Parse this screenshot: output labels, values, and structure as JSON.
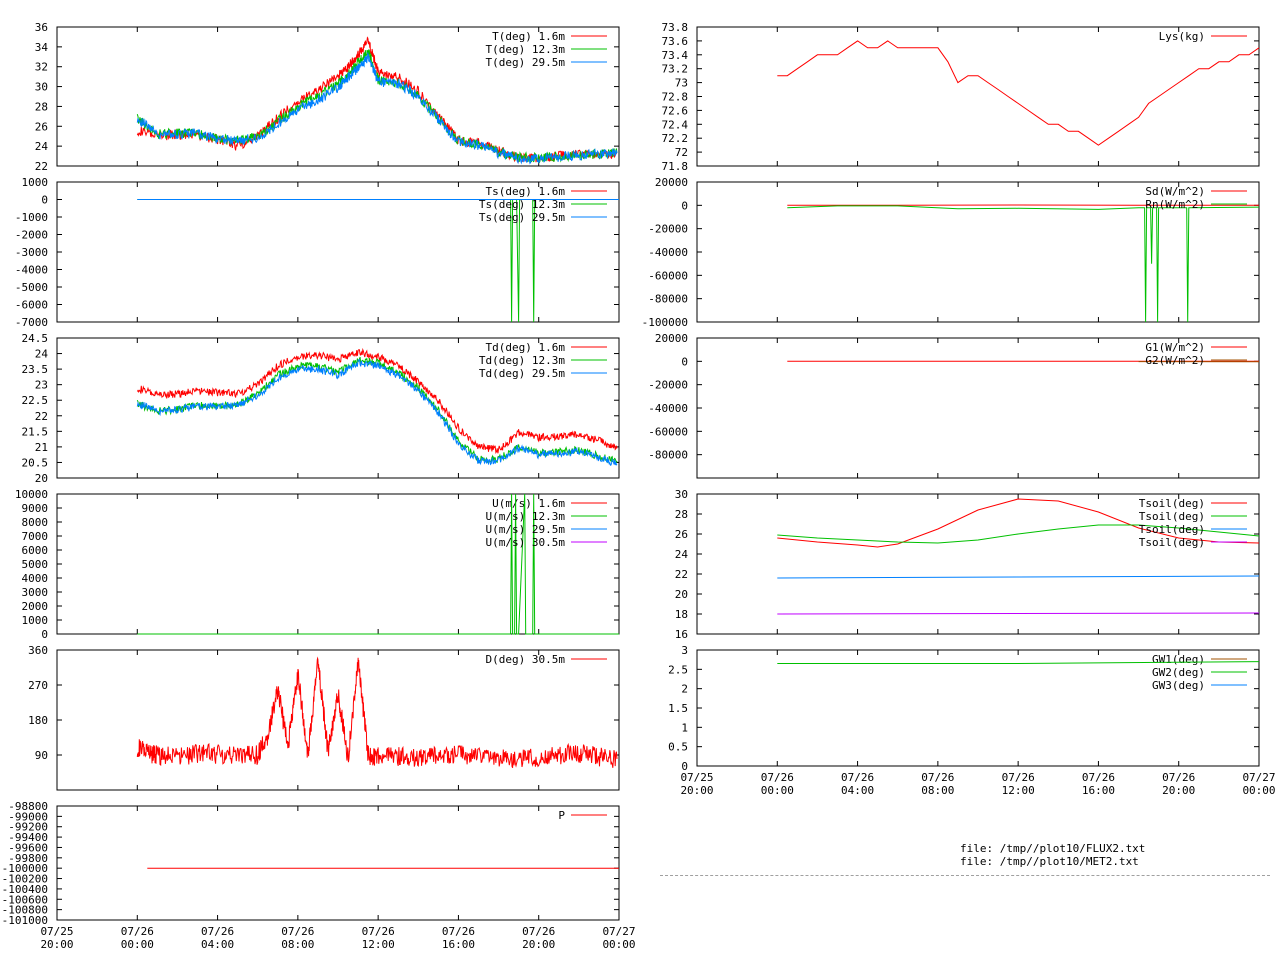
{
  "colors": {
    "red": "#ff0000",
    "green": "#00c000",
    "blue": "#0080ff",
    "purple": "#c000ff",
    "brown": "#a05000",
    "black": "#000000"
  },
  "files": {
    "line1": "file: /tmp//plot10/FLUX2.txt",
    "line2": "file: /tmp//plot10/MET2.txt"
  },
  "chart_data": [
    {
      "id": "temperature",
      "type": "line",
      "x_range_hours": [
        -4,
        24
      ],
      "ylim": [
        22,
        36
      ],
      "yticks": [
        "22",
        "24",
        "26",
        "28",
        "30",
        "32",
        "34",
        "36"
      ],
      "series": [
        {
          "name": "T(deg)  1.6m",
          "color": "#ff0000",
          "x": [
            0,
            1,
            2,
            3,
            4,
            5,
            6,
            7,
            8,
            9,
            10,
            10.5,
            11,
            11.5,
            12,
            13,
            14,
            15,
            16,
            17,
            18,
            19,
            20,
            21,
            22,
            23,
            23.9
          ],
          "y": [
            25.6,
            25.0,
            25.2,
            25.1,
            24.7,
            24.0,
            25.0,
            26.8,
            28.5,
            29.6,
            31.0,
            32.0,
            33.2,
            34.6,
            31.5,
            31.0,
            29.5,
            27.0,
            24.6,
            24.3,
            23.5,
            22.9,
            22.8,
            23.0,
            23.2,
            23.2,
            23.3
          ]
        },
        {
          "name": "T(deg) 12.3m",
          "color": "#00c000",
          "x": [
            0,
            1,
            2,
            3,
            4,
            5,
            6,
            7,
            8,
            9,
            10,
            10.5,
            11,
            11.5,
            12,
            13,
            14,
            15,
            16,
            17,
            18,
            19,
            20,
            21,
            22,
            23,
            23.9
          ],
          "y": [
            26.8,
            25.2,
            25.3,
            25.3,
            24.7,
            24.6,
            24.9,
            26.5,
            28.0,
            29.0,
            30.3,
            31.2,
            32.4,
            33.6,
            30.7,
            30.4,
            29.1,
            26.8,
            24.5,
            24.2,
            23.4,
            22.9,
            22.8,
            23.0,
            23.1,
            23.2,
            23.3
          ]
        },
        {
          "name": "T(deg) 29.5m",
          "color": "#0080ff",
          "x": [
            0,
            1,
            2,
            3,
            4,
            5,
            6,
            7,
            8,
            9,
            10,
            10.5,
            11,
            11.5,
            12,
            13,
            14,
            15,
            16,
            17,
            18,
            19,
            20,
            21,
            22,
            23,
            23.9
          ],
          "y": [
            26.8,
            25.2,
            25.2,
            25.3,
            24.7,
            24.6,
            24.8,
            26.2,
            27.7,
            28.6,
            29.9,
            30.9,
            31.8,
            33.0,
            30.5,
            30.3,
            29.0,
            26.7,
            24.4,
            24.1,
            23.3,
            22.8,
            22.7,
            22.9,
            23.1,
            23.2,
            23.3
          ]
        }
      ]
    },
    {
      "id": "sonic-temperature",
      "type": "line",
      "x_range_hours": [
        -4,
        24
      ],
      "ylim": [
        -7000,
        1000
      ],
      "yticks": [
        "-7000",
        "-6000",
        "-5000",
        "-4000",
        "-3000",
        "-2000",
        "-1000",
        "0",
        "1000"
      ],
      "series": [
        {
          "name": "Ts(deg)  1.6m",
          "color": "#ff0000",
          "x": [],
          "y": []
        },
        {
          "name": "Ts(deg) 12.3m",
          "color": "#00c000",
          "x": [
            0,
            18.6,
            18.65,
            18.7,
            18.8,
            18.9,
            19.0,
            19.05,
            19.1,
            19.7,
            19.75,
            19.8,
            24
          ],
          "y": [
            0,
            0,
            -7000,
            0,
            0,
            0,
            -7000,
            0,
            0,
            0,
            -7000,
            0,
            0
          ]
        },
        {
          "name": "Ts(deg) 29.5m",
          "color": "#0080ff",
          "x": [
            0,
            24
          ],
          "y": [
            0,
            0
          ]
        }
      ]
    },
    {
      "id": "dewpoint",
      "type": "line",
      "x_range_hours": [
        -4,
        24
      ],
      "ylim": [
        20,
        24.5
      ],
      "yticks": [
        "20",
        "20.5",
        "21",
        "21.5",
        "22",
        "22.5",
        "23",
        "23.5",
        "24",
        "24.5"
      ],
      "series": [
        {
          "name": "Td(deg)  1.6m",
          "color": "#ff0000",
          "x": [
            0,
            1,
            2,
            3,
            4,
            5,
            6,
            7,
            8,
            9,
            10,
            11,
            12,
            13,
            14,
            15,
            16,
            17,
            18,
            19,
            20,
            21,
            22,
            23,
            23.9
          ],
          "y": [
            22.9,
            22.65,
            22.7,
            22.8,
            22.75,
            22.7,
            23.0,
            23.6,
            23.9,
            23.95,
            23.8,
            24.05,
            23.9,
            23.6,
            23.1,
            22.5,
            21.6,
            21.0,
            20.9,
            21.45,
            21.3,
            21.35,
            21.4,
            21.2,
            20.95
          ]
        },
        {
          "name": "Td(deg) 12.3m",
          "color": "#00c000",
          "x": [
            0,
            1,
            2,
            3,
            4,
            5,
            6,
            7,
            8,
            9,
            10,
            11,
            12,
            13,
            14,
            15,
            16,
            17,
            18,
            19,
            20,
            21,
            22,
            23,
            23.9
          ],
          "y": [
            22.4,
            22.15,
            22.2,
            22.35,
            22.3,
            22.35,
            22.7,
            23.3,
            23.6,
            23.6,
            23.4,
            23.8,
            23.7,
            23.4,
            22.9,
            22.2,
            21.2,
            20.6,
            20.6,
            21.0,
            20.8,
            20.85,
            20.9,
            20.7,
            20.55
          ]
        },
        {
          "name": "Td(deg) 29.5m",
          "color": "#0080ff",
          "x": [
            0,
            1,
            2,
            3,
            4,
            5,
            6,
            7,
            8,
            9,
            10,
            11,
            12,
            13,
            14,
            15,
            16,
            17,
            18,
            19,
            20,
            21,
            22,
            23,
            23.9
          ],
          "y": [
            22.4,
            22.15,
            22.2,
            22.3,
            22.3,
            22.35,
            22.65,
            23.2,
            23.5,
            23.5,
            23.3,
            23.7,
            23.6,
            23.3,
            22.8,
            22.1,
            21.1,
            20.55,
            20.55,
            20.95,
            20.75,
            20.8,
            20.85,
            20.65,
            20.45
          ]
        }
      ]
    },
    {
      "id": "wind-speed",
      "type": "line",
      "x_range_hours": [
        -4,
        24
      ],
      "ylim": [
        0,
        10000
      ],
      "yticks": [
        "0",
        "1000",
        "2000",
        "3000",
        "4000",
        "5000",
        "6000",
        "7000",
        "8000",
        "9000",
        "10000"
      ],
      "series": [
        {
          "name": "U(m/s)  1.6m",
          "color": "#ff0000",
          "x": [],
          "y": []
        },
        {
          "name": "U(m/s) 12.3m",
          "color": "#00c000",
          "x": [
            0,
            18.6,
            18.65,
            18.7,
            18.8,
            18.85,
            18.9,
            19.0,
            19.3,
            19.35,
            19.7,
            19.75,
            19.8,
            24
          ],
          "y": [
            0,
            0,
            10000,
            0,
            0,
            10000,
            0,
            0,
            10000,
            0,
            0,
            10000,
            0,
            0
          ]
        },
        {
          "name": "U(m/s) 29.5m",
          "color": "#0080ff",
          "x": [],
          "y": []
        },
        {
          "name": "U(m/s) 30.5m",
          "color": "#c000ff",
          "x": [],
          "y": []
        }
      ]
    },
    {
      "id": "wind-direction",
      "type": "line",
      "x_range_hours": [
        -4,
        24
      ],
      "ylim": [
        0,
        360
      ],
      "yticks": [
        "90",
        "180",
        "270",
        "360"
      ],
      "series": [
        {
          "name": "D(deg)  30.5m",
          "color": "#ff0000",
          "x": [
            0,
            0.5,
            1,
            2,
            3,
            4,
            5,
            6,
            6.5,
            7,
            7.5,
            8,
            8.5,
            9,
            9.5,
            10,
            10.5,
            11,
            11.5,
            12,
            13,
            14,
            15,
            16,
            17,
            18,
            19,
            20,
            21,
            22,
            23,
            23.9
          ],
          "y": [
            110,
            95,
            90,
            85,
            95,
            92,
            88,
            90,
            140,
            260,
            110,
            300,
            90,
            330,
            100,
            250,
            80,
            330,
            90,
            85,
            85,
            85,
            90,
            90,
            88,
            85,
            80,
            85,
            90,
            95,
            85,
            80
          ]
        }
      ]
    },
    {
      "id": "pressure",
      "type": "line",
      "x_range_hours": [
        -4,
        24
      ],
      "ylim": [
        -101000,
        -98800
      ],
      "yticks": [
        "-101000",
        "-100800",
        "-100600",
        "-100400",
        "-100200",
        "-100000",
        "-99800",
        "-99600",
        "-99400",
        "-99200",
        "-99000",
        "-98800"
      ],
      "series": [
        {
          "name": "P",
          "color": "#ff0000",
          "x": [
            0.5,
            24
          ],
          "y": [
            -100000,
            -100000
          ]
        }
      ]
    },
    {
      "id": "lysimeter",
      "type": "line",
      "x_range_hours": [
        -4,
        24
      ],
      "ylim": [
        71.8,
        73.8
      ],
      "yticks": [
        "71.8",
        "72",
        "72.2",
        "72.4",
        "72.6",
        "72.8",
        "73",
        "73.2",
        "73.4",
        "73.6",
        "73.8"
      ],
      "series": [
        {
          "name": "Lys(kg)",
          "color": "#ff0000",
          "x": [
            0,
            0.5,
            1,
            1.5,
            2,
            3,
            3.5,
            4,
            4.5,
            5,
            5.5,
            6,
            6.5,
            7,
            7.5,
            8,
            8.5,
            9,
            9.5,
            10,
            10.5,
            11,
            11.5,
            12,
            12.5,
            13,
            13.5,
            14,
            14.5,
            15,
            15.5,
            16,
            16.5,
            17,
            17.5,
            18,
            18.5,
            19,
            19.5,
            20,
            20.5,
            21,
            21.5,
            22,
            22.5,
            23,
            23.5,
            24
          ],
          "y": [
            73.1,
            73.1,
            73.2,
            73.3,
            73.4,
            73.4,
            73.5,
            73.6,
            73.5,
            73.5,
            73.6,
            73.5,
            73.5,
            73.5,
            73.5,
            73.5,
            73.3,
            73.0,
            73.1,
            73.1,
            73.0,
            72.9,
            72.8,
            72.7,
            72.6,
            72.5,
            72.4,
            72.4,
            72.3,
            72.3,
            72.2,
            72.1,
            72.2,
            72.3,
            72.4,
            72.5,
            72.7,
            72.8,
            72.9,
            73.0,
            73.1,
            73.2,
            73.2,
            73.3,
            73.3,
            73.4,
            73.4,
            73.5
          ]
        }
      ]
    },
    {
      "id": "radiation",
      "type": "line",
      "x_range_hours": [
        -4,
        24
      ],
      "ylim": [
        -100000,
        20000
      ],
      "yticks": [
        "-100000",
        "-80000",
        "-60000",
        "-40000",
        "-20000",
        "0",
        "20000"
      ],
      "series": [
        {
          "name": "Sd(W/m^2)",
          "color": "#ff0000",
          "x": [
            0.5,
            6,
            12,
            18,
            24
          ],
          "y": [
            0,
            0,
            300,
            0,
            0
          ]
        },
        {
          "name": "Rn(W/m^2)",
          "color": "#00c000",
          "x": [
            0.5,
            3,
            6,
            9,
            12,
            16,
            18,
            18.3,
            18.35,
            18.4,
            18.6,
            18.65,
            18.7,
            18.9,
            18.95,
            19,
            20.4,
            20.45,
            20.5,
            24
          ],
          "y": [
            -2000,
            -500,
            -500,
            -3000,
            -2500,
            -3500,
            -2000,
            -2000,
            -100000,
            -2000,
            -2000,
            -50000,
            -2000,
            -2000,
            -100000,
            -2000,
            -2000,
            -100000,
            -2000,
            -1500
          ]
        }
      ]
    },
    {
      "id": "soil-heat-flux",
      "type": "line",
      "x_range_hours": [
        -4,
        24
      ],
      "ylim": [
        -100000,
        20000
      ],
      "yticks": [
        "-80000",
        "-60000",
        "-40000",
        "-20000",
        "0",
        "20000"
      ],
      "series": [
        {
          "name": "G1(W/m^2)",
          "color": "#ff0000",
          "x": [
            0.5,
            12,
            18,
            24
          ],
          "y": [
            0,
            0,
            0,
            0
          ]
        },
        {
          "name": "G2(W/m^2)",
          "color": "#a05000",
          "x": [
            18,
            24
          ],
          "y": [
            -200,
            -300
          ]
        }
      ]
    },
    {
      "id": "soil-temperature",
      "type": "line",
      "x_range_hours": [
        -4,
        24
      ],
      "ylim": [
        16,
        30
      ],
      "yticks": [
        "16",
        "18",
        "20",
        "22",
        "24",
        "26",
        "28",
        "30"
      ],
      "series": [
        {
          "name": "Tsoil(deg)",
          "color": "#ff0000",
          "x": [
            0,
            2,
            4,
            5,
            6,
            8,
            10,
            12,
            14,
            16,
            18,
            20,
            22,
            24
          ],
          "y": [
            25.6,
            25.2,
            24.9,
            24.7,
            25.0,
            26.5,
            28.4,
            29.5,
            29.3,
            28.2,
            26.6,
            25.6,
            25.2,
            25.1
          ]
        },
        {
          "name": "Tsoil(deg)",
          "color": "#00c000",
          "x": [
            0,
            2,
            4,
            6,
            8,
            10,
            12,
            14,
            16,
            18,
            20,
            22,
            24
          ],
          "y": [
            25.9,
            25.6,
            25.4,
            25.2,
            25.1,
            25.4,
            26.0,
            26.5,
            26.9,
            26.9,
            26.6,
            26.2,
            25.8
          ]
        },
        {
          "name": "Tsoil(deg)",
          "color": "#0080ff",
          "x": [
            0,
            12,
            24
          ],
          "y": [
            21.6,
            21.7,
            21.8
          ]
        },
        {
          "name": "Tsoil(deg)",
          "color": "#c000ff",
          "x": [
            0,
            12,
            24
          ],
          "y": [
            18.0,
            18.05,
            18.1
          ]
        }
      ]
    },
    {
      "id": "ground-water",
      "type": "line",
      "x_range_hours": [
        -4,
        24
      ],
      "ylim": [
        0,
        3
      ],
      "yticks": [
        "0",
        "0.5",
        "1",
        "1.5",
        "2",
        "2.5",
        "3"
      ],
      "series": [
        {
          "name": "GW1(deg)",
          "color": "#a05000",
          "x": [],
          "y": []
        },
        {
          "name": "GW2(deg)",
          "color": "#00c000",
          "x": [
            0,
            12,
            24
          ],
          "y": [
            2.65,
            2.65,
            2.7
          ]
        },
        {
          "name": "GW3(deg)",
          "color": "#0080ff",
          "x": [],
          "y": []
        }
      ]
    }
  ],
  "x_axis": {
    "ticks_hours": [
      -4,
      0,
      4,
      8,
      12,
      16,
      20,
      24
    ],
    "labels_top": [
      "07/25",
      "07/26",
      "07/26",
      "07/26",
      "07/26",
      "07/26",
      "07/26",
      "07/27"
    ],
    "labels_bottom": [
      "20:00",
      "00:00",
      "04:00",
      "08:00",
      "12:00",
      "16:00",
      "20:00",
      "00:00"
    ]
  }
}
